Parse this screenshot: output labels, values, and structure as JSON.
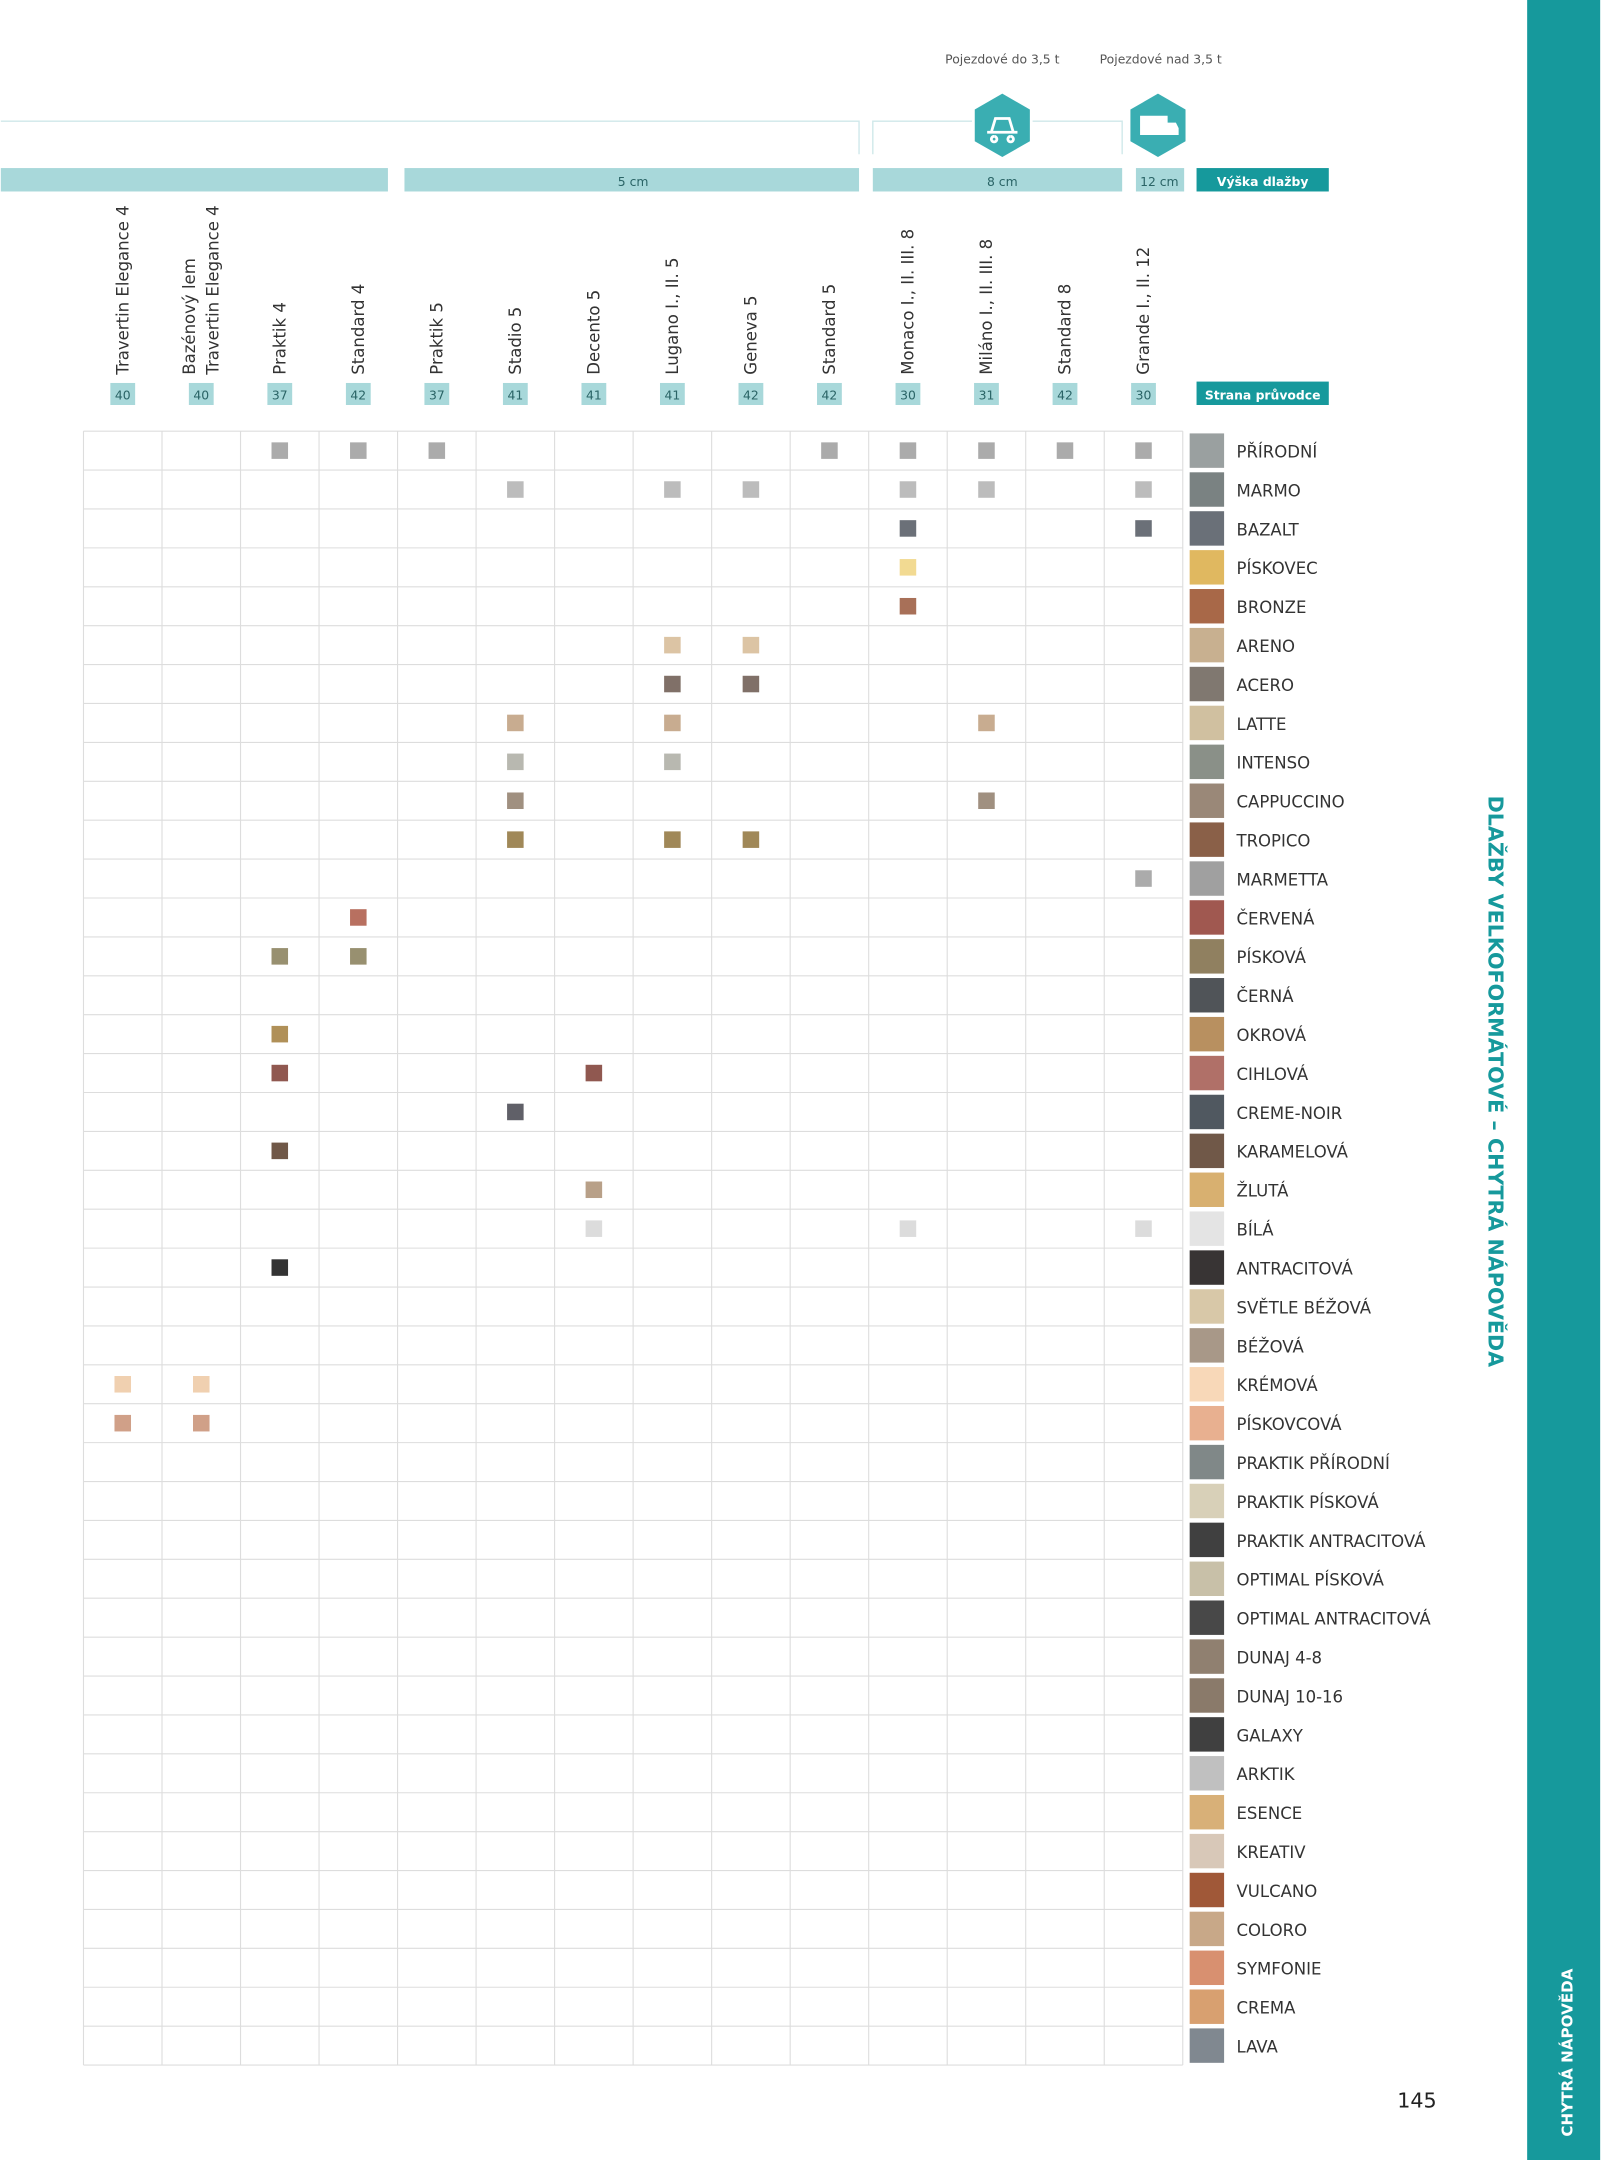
{
  "header": {
    "load_small": "Pojezdové do 3,5 t",
    "load_large": "Pojezdové nad 3,5 t",
    "heights": [
      {
        "label": "5 cm"
      },
      {
        "label": "8 cm"
      },
      {
        "label": "12 cm"
      }
    ],
    "height_title": "Výška dlažby",
    "page_title": "Strana průvodce"
  },
  "columns": [
    {
      "lines": [
        "Travertin Elegance 4"
      ],
      "page": "40"
    },
    {
      "lines": [
        "Bazénový lem",
        "Travertin Elegance 4"
      ],
      "page": "40"
    },
    {
      "lines": [
        "Praktik  4"
      ],
      "page": "37"
    },
    {
      "lines": [
        "Standard 4"
      ],
      "page": "42"
    },
    {
      "lines": [
        "Praktik 5"
      ],
      "page": "37"
    },
    {
      "lines": [
        "Stadio 5"
      ],
      "page": "41"
    },
    {
      "lines": [
        "Decento 5"
      ],
      "page": "41"
    },
    {
      "lines": [
        "Lugano I., II. 5"
      ],
      "page": "41"
    },
    {
      "lines": [
        "Geneva 5"
      ],
      "page": "42"
    },
    {
      "lines": [
        "Standard 5"
      ],
      "page": "42"
    },
    {
      "lines": [
        "Monaco I., II. III. 8"
      ],
      "page": "30"
    },
    {
      "lines": [
        "Miláno  I., II. III. 8"
      ],
      "page": "31"
    },
    {
      "lines": [
        "Standard 8"
      ],
      "page": "42"
    },
    {
      "lines": [
        "Grande I., II. 12"
      ],
      "page": "30"
    }
  ],
  "rows": [
    {
      "name": "PŘÍRODNÍ",
      "swatch": "#9aa0a0",
      "mark_color": "#ababab",
      "columns": [
        2,
        3,
        4,
        9,
        10,
        11,
        12,
        13
      ]
    },
    {
      "name": "MARMO",
      "swatch": "#7a8282",
      "mark_color": "#bcbcbc",
      "columns": [
        5,
        7,
        8,
        10,
        11,
        13
      ]
    },
    {
      "name": "BAZALT",
      "swatch": "#6a7078",
      "mark_color": "#6b7078",
      "columns": [
        10,
        13
      ]
    },
    {
      "name": "PÍSKOVEC",
      "swatch": "#e0b860",
      "mark_color": "#f2da92",
      "columns": [
        10
      ]
    },
    {
      "name": "BRONZE",
      "swatch": "#a86848",
      "mark_color": "#a87058",
      "columns": [
        10
      ]
    },
    {
      "name": "ARENO",
      "swatch": "#c8b090",
      "mark_color": "#dcc4a4",
      "columns": [
        7,
        8
      ]
    },
    {
      "name": "ACERO",
      "swatch": "#807870",
      "mark_color": "#807068",
      "columns": [
        7,
        8
      ]
    },
    {
      "name": "LATTE",
      "swatch": "#d0c0a0",
      "mark_color": "#c8ac90",
      "columns": [
        5,
        7,
        11
      ]
    },
    {
      "name": "INTENSO",
      "swatch": "#8a9088",
      "mark_color": "#b8b8b0",
      "columns": [
        5,
        7
      ]
    },
    {
      "name": "CAPPUCCINO",
      "swatch": "#9a8878",
      "mark_color": "#a09080",
      "columns": [
        5,
        11
      ]
    },
    {
      "name": "TROPICO",
      "swatch": "#8a6048",
      "mark_color": "#a08858",
      "columns": [
        5,
        7,
        8
      ]
    },
    {
      "name": "MARMETTA",
      "swatch": "#a0a0a0",
      "mark_color": "#ababab",
      "columns": [
        13
      ]
    },
    {
      "name": "ČERVENÁ",
      "swatch": "#a05850",
      "mark_color": "#b87060",
      "columns": [
        3
      ]
    },
    {
      "name": "PÍSKOVÁ",
      "swatch": "#908060",
      "mark_color": "#989070",
      "columns": [
        2,
        3
      ]
    },
    {
      "name": "ČERNÁ",
      "swatch": "#505458",
      "mark_color": "#505458",
      "columns": []
    },
    {
      "name": "OKROVÁ",
      "swatch": "#b89060",
      "mark_color": "#b09058",
      "columns": [
        2
      ]
    },
    {
      "name": "CIHLOVÁ",
      "swatch": "#b07068",
      "mark_color": "#905850",
      "columns": [
        2,
        6
      ]
    },
    {
      "name": "CREME-NOIR",
      "swatch": "#505860",
      "mark_color": "#606068",
      "columns": [
        5
      ]
    },
    {
      "name": "KARAMELOVÁ",
      "swatch": "#705848",
      "mark_color": "#705848",
      "columns": [
        2
      ]
    },
    {
      "name": "ŽLUTÁ",
      "swatch": "#d8b070",
      "mark_color": "#b8a088",
      "columns": [
        6
      ]
    },
    {
      "name": "BÍLÁ",
      "swatch": "#e4e4e4",
      "mark_color": "#dcdcdc",
      "columns": [
        6,
        10,
        13
      ]
    },
    {
      "name": "ANTRACITOVÁ",
      "swatch": "#383434",
      "mark_color": "#333333",
      "columns": [
        2
      ]
    },
    {
      "name": "SVĚTLE BÉŽOVÁ",
      "swatch": "#d8c8a8",
      "mark_color": "#d8c8a8",
      "columns": []
    },
    {
      "name": "BÉŽOVÁ",
      "swatch": "#a89888",
      "mark_color": "#a89888",
      "columns": []
    },
    {
      "name": "KRÉMOVÁ",
      "swatch": "#f8d8b8",
      "mark_color": "#f0d0b0",
      "columns": [
        0,
        1
      ]
    },
    {
      "name": "PÍSKOVCOVÁ",
      "swatch": "#e8b090",
      "mark_color": "#d0a088",
      "columns": [
        0,
        1
      ]
    },
    {
      "name": "PRAKTIK PŘÍRODNÍ",
      "swatch": "#808888",
      "mark_color": "#808888",
      "columns": []
    },
    {
      "name": "PRAKTIK PÍSKOVÁ",
      "swatch": "#d8d0b8",
      "mark_color": "#d8d0b8",
      "columns": []
    },
    {
      "name": "PRAKTIK ANTRACITOVÁ",
      "swatch": "#404040",
      "mark_color": "#404040",
      "columns": []
    },
    {
      "name": "OPTIMAL PÍSKOVÁ",
      "swatch": "#c8c0a8",
      "mark_color": "#c8c0a8",
      "columns": []
    },
    {
      "name": "OPTIMAL ANTRACITOVÁ",
      "swatch": "#484848",
      "mark_color": "#484848",
      "columns": []
    },
    {
      "name": "DUNAJ 4-8",
      "swatch": "#908070",
      "mark_color": "#908070",
      "columns": []
    },
    {
      "name": "DUNAJ 10-16",
      "swatch": "#8a7a6a",
      "mark_color": "#8a7a6a",
      "columns": []
    },
    {
      "name": "GALAXY",
      "swatch": "#404040",
      "mark_color": "#404040",
      "columns": []
    },
    {
      "name": "ARKTIK",
      "swatch": "#c0c0c0",
      "mark_color": "#c0c0c0",
      "columns": []
    },
    {
      "name": "ESENCE",
      "swatch": "#d8b078",
      "mark_color": "#d8b078",
      "columns": []
    },
    {
      "name": "KREATIV",
      "swatch": "#d8c8b8",
      "mark_color": "#d8c8b8",
      "columns": []
    },
    {
      "name": "VULCANO",
      "swatch": "#a05838",
      "mark_color": "#a05838",
      "columns": []
    },
    {
      "name": "COLORO",
      "swatch": "#c8a888",
      "mark_color": "#c8a888",
      "columns": []
    },
    {
      "name": "SYMFONIE",
      "swatch": "#d89070",
      "mark_color": "#d89070",
      "columns": []
    },
    {
      "name": "CREMA",
      "swatch": "#d8a070",
      "mark_color": "#d8a070",
      "columns": []
    },
    {
      "name": "LAVA",
      "swatch": "#808890",
      "mark_color": "#808890",
      "columns": []
    }
  ],
  "side_title": "DLAŽBY VELKOFORMÁTOVÉ – CHYTRÁ NÁPOVĚDA",
  "tab_label": "CHYTRÁ NÁPOVĚDA",
  "page_number": "145"
}
